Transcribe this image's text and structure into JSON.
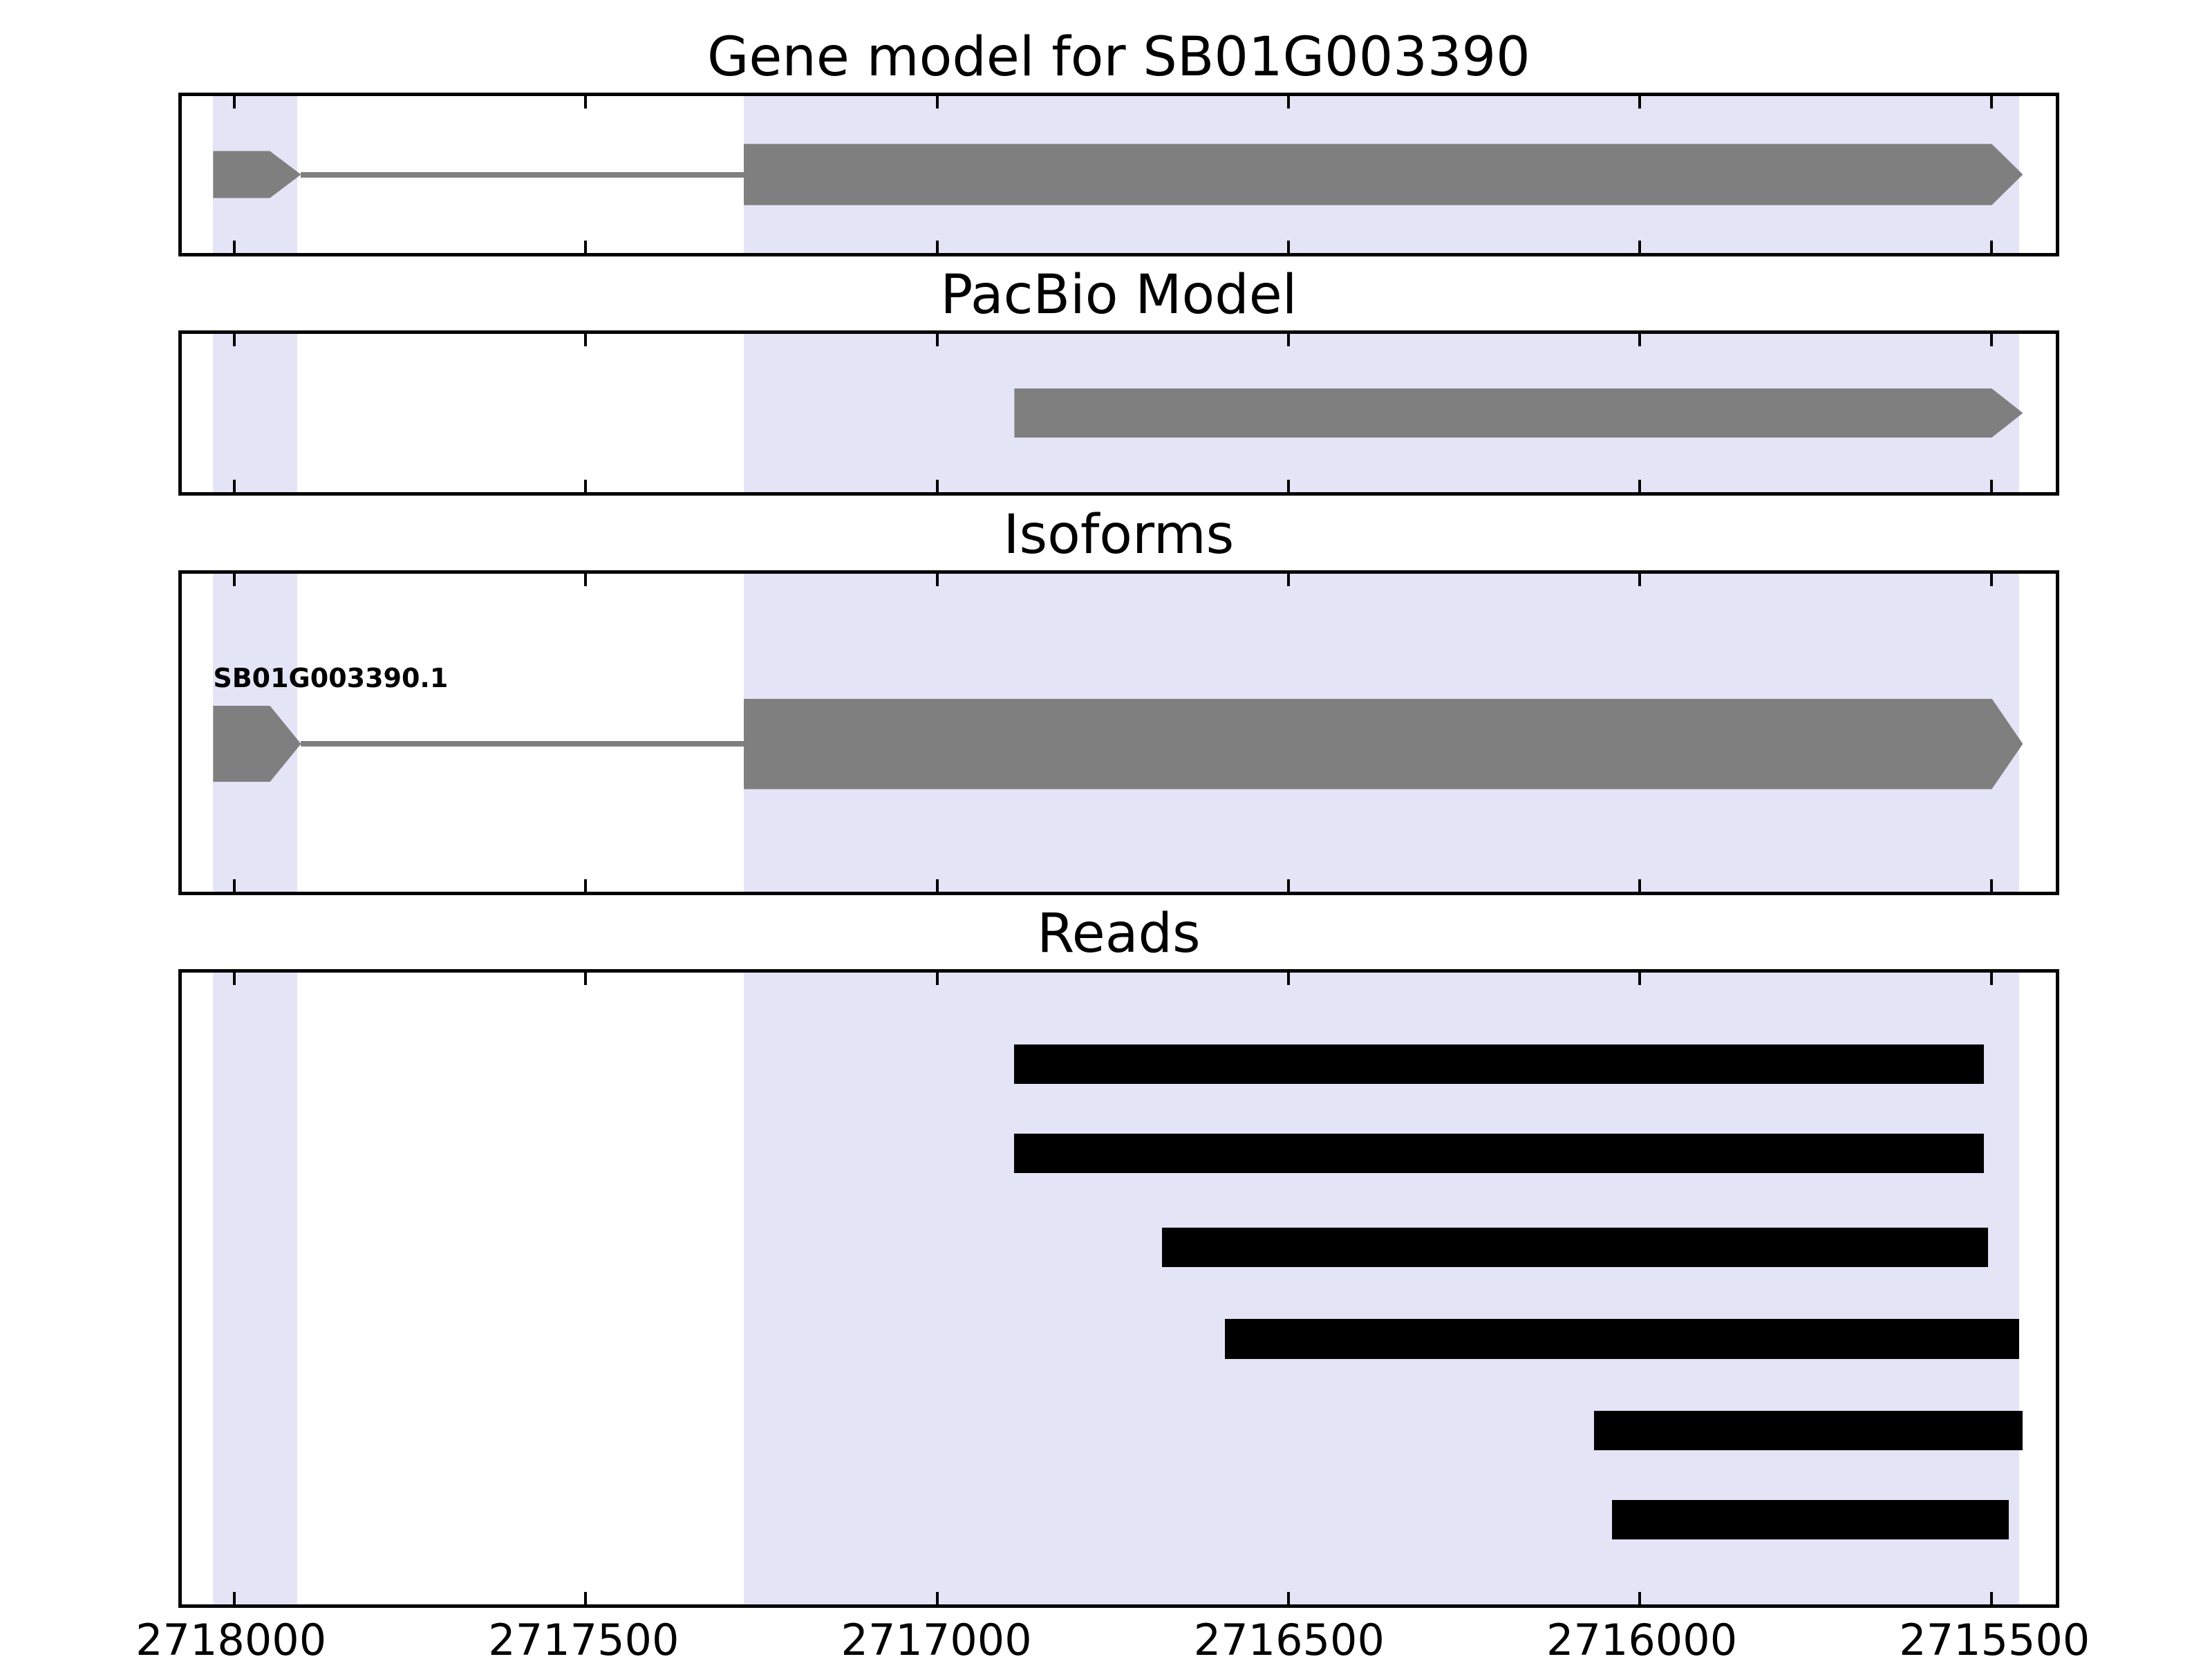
{
  "axis": {
    "reversed": true,
    "xlim": [
      2718075,
      2715408
    ],
    "domain": {
      "left": 2718075,
      "right": 2715408
    },
    "ticks": [
      {
        "value": 2718000,
        "label": "2718000"
      },
      {
        "value": 2717500,
        "label": "2717500"
      },
      {
        "value": 2717000,
        "label": "2717000"
      },
      {
        "value": 2716500,
        "label": "2716500"
      },
      {
        "value": 2716000,
        "label": "2716000"
      },
      {
        "value": 2715500,
        "label": "2715500"
      }
    ]
  },
  "highlights": [
    {
      "start": 2718030,
      "end": 2717910
    },
    {
      "start": 2717275,
      "end": 2715460
    }
  ],
  "colors": {
    "background": "#ffffff",
    "axis": "#000000",
    "highlight": "#e4e4f7",
    "gene": "#7f7f7f",
    "read": "#000000"
  },
  "chart_data": [
    {
      "type": "gene-model",
      "title": "Gene model for SB01G003390",
      "strand_direction": "right",
      "features": [
        {
          "kind": "exon",
          "start": 2718030,
          "end": 2717905,
          "arrow": true
        },
        {
          "kind": "intron",
          "start": 2717905,
          "end": 2717275
        },
        {
          "kind": "exon",
          "start": 2717275,
          "end": 2715455,
          "arrow": true
        }
      ]
    },
    {
      "type": "gene-model",
      "title": "PacBio Model",
      "strand_direction": "right",
      "features": [
        {
          "kind": "exon",
          "start": 2716890,
          "end": 2715455,
          "arrow": true
        }
      ]
    },
    {
      "type": "isoforms",
      "title": "Isoforms",
      "isoforms": [
        {
          "label": "SB01G003390.1",
          "features": [
            {
              "kind": "exon",
              "start": 2718030,
              "end": 2717905,
              "arrow": true
            },
            {
              "kind": "intron",
              "start": 2717905,
              "end": 2717275
            },
            {
              "kind": "exon",
              "start": 2717275,
              "end": 2715455,
              "arrow": true
            }
          ]
        }
      ]
    },
    {
      "type": "reads",
      "title": "Reads",
      "reads": [
        {
          "start": 2716890,
          "end": 2715510
        },
        {
          "start": 2716890,
          "end": 2715510
        },
        {
          "start": 2716680,
          "end": 2715505
        },
        {
          "start": 2716590,
          "end": 2715460
        },
        {
          "start": 2716065,
          "end": 2715455
        },
        {
          "start": 2716040,
          "end": 2715475
        }
      ]
    }
  ]
}
